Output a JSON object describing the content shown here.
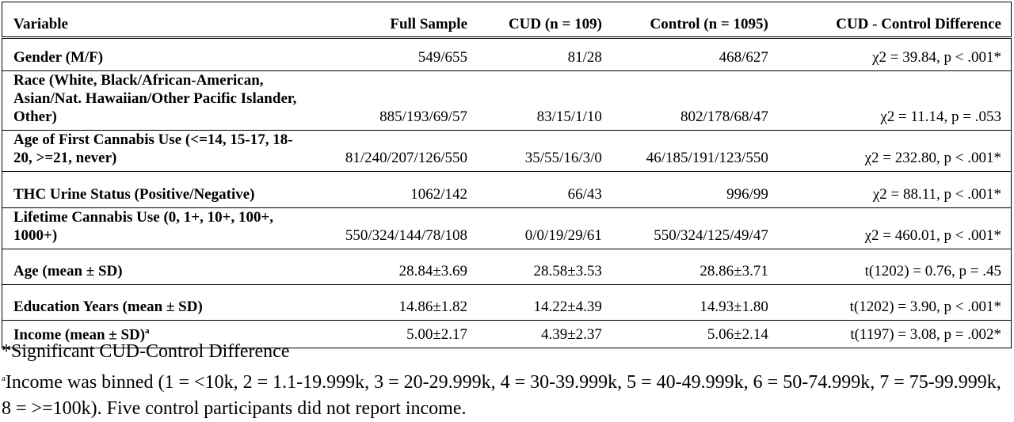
{
  "table": {
    "header": [
      "Variable",
      "Full Sample",
      "CUD (n = 109)",
      "Control (n = 1095)",
      "CUD - Control Difference"
    ],
    "rows": [
      {
        "variable": "Gender (M/F)",
        "full_sample": "549/655",
        "cud": "81/28",
        "control": "468/627",
        "difference": "χ2 = 39.84, p < .001*"
      },
      {
        "variable": "Race (White, Black/African-American, Asian/Nat. Hawaiian/Other Pacific Islander, Other)",
        "full_sample": "885/193/69/57",
        "cud": "83/15/1/10",
        "control": "802/178/68/47",
        "difference": "χ2 = 11.14, p = .053"
      },
      {
        "variable": "Age of First Cannabis Use (<=14, 15-17, 18-20, >=21, never)",
        "full_sample": "81/240/207/126/550",
        "cud": "35/55/16/3/0",
        "control": "46/185/191/123/550",
        "difference": "χ2 = 232.80, p < .001*"
      },
      {
        "variable": "THC Urine Status (Positive/Negative)",
        "full_sample": "1062/142",
        "cud": "66/43",
        "control": "996/99",
        "difference": "χ2 = 88.11, p < .001*"
      },
      {
        "variable": "Lifetime Cannabis Use (0, 1+, 10+, 100+, 1000+)",
        "full_sample": "550/324/144/78/108",
        "cud": "0/0/19/29/61",
        "control": "550/324/125/49/47",
        "difference": "χ2 = 460.01, p < .001*"
      },
      {
        "variable": "Age (mean ± SD)",
        "full_sample": "28.84±3.69",
        "cud": "28.58±3.53",
        "control": "28.86±3.71",
        "difference": "t(1202) = 0.76, p = .45"
      },
      {
        "variable": "Education Years (mean ± SD)",
        "full_sample": "14.86±1.82",
        "cud": "14.22±4.39",
        "control": "14.93±1.80",
        "difference": "t(1202) = 3.90, p < .001*"
      },
      {
        "variable": "Income (mean ± SD)",
        "note": "a",
        "full_sample": "5.00±2.17",
        "cud": "4.39±2.37",
        "control": "5.06±2.14",
        "difference": "t(1197) = 3.08, p = .002*"
      }
    ]
  },
  "footnotes": [
    {
      "text": "*Significant CUD-Control Difference"
    },
    {
      "marker": "a",
      "text": "Income was binned (1 = <10k, 2 = 1.1-19.999k, 3 = 20-29.999k, 4 = 30-39.999k, 5 = 40-49.999k, 6 = 50-74.999k, 7 = 75-99.999k, 8 = >=100k). Five control participants did not report income."
    }
  ]
}
